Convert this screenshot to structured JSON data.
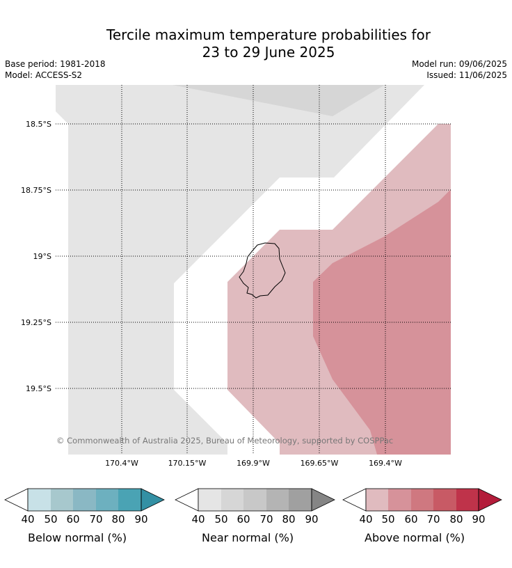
{
  "title": {
    "line1": "Tercile maximum temperature probabilities for",
    "line2": "23 to 29 June 2025"
  },
  "meta": {
    "base_period": "Base period: 1981-2018",
    "model": "Model: ACCESS-S2",
    "model_run": "Model run: 09/06/2025",
    "issued": "Issued: 11/06/2025"
  },
  "map": {
    "lat_labels": [
      "18.5°S",
      "18.75°S",
      "19°S",
      "19.25°S",
      "19.5°S"
    ],
    "lon_labels": [
      "170.4°W",
      "170.15°W",
      "169.9°W",
      "169.65°W",
      "169.4°W"
    ],
    "copyright": "© Commonwealth of Australia 2025, Bureau of Meteorology, supported by COSPPac",
    "region_colors": {
      "near_40": "#e5e5e5",
      "near_50": "#d6d6d6",
      "above_40": "#e0bbbf",
      "above_50": "#d6929a"
    }
  },
  "legends": [
    {
      "name": "below",
      "label": "Below normal (%)",
      "ticks": [
        "40",
        "50",
        "60",
        "70",
        "80",
        "90"
      ],
      "colors": [
        "#c8e1e7",
        "#a7c8cd",
        "#8ab8c4",
        "#6db0bf",
        "#4aa3b4",
        "#3390a4"
      ]
    },
    {
      "name": "near",
      "label": "Near normal (%)",
      "ticks": [
        "40",
        "50",
        "60",
        "70",
        "80",
        "90"
      ],
      "colors": [
        "#e5e5e5",
        "#d6d6d6",
        "#c8c8c8",
        "#b4b4b4",
        "#a0a0a0",
        "#858585"
      ]
    },
    {
      "name": "above",
      "label": "Above normal (%)",
      "ticks": [
        "40",
        "50",
        "60",
        "70",
        "80",
        "90"
      ],
      "colors": [
        "#e0bbbf",
        "#d6929a",
        "#cf7880",
        "#c85a65",
        "#bf334a",
        "#b31c3a"
      ]
    }
  ]
}
